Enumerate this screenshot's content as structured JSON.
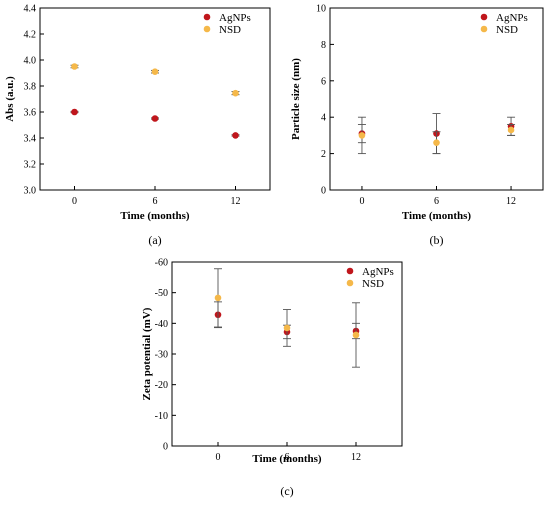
{
  "colors": {
    "agnps": "#c0161c",
    "nsd": "#f5b849",
    "axis": "#000000",
    "errorbar": "#555555"
  },
  "chart_data": [
    {
      "type": "scatter",
      "panel_label": "(a)",
      "xlabel": "Time (months)",
      "ylabel": "Abs (a.u.)",
      "categories": [
        "0",
        "6",
        "12"
      ],
      "ylim": [
        3.0,
        4.4
      ],
      "yticks": [
        "3.0",
        "3.2",
        "3.4",
        "3.6",
        "3.8",
        "4.0",
        "4.2",
        "4.4"
      ],
      "grid": false,
      "legend_position": "top-right",
      "series": [
        {
          "name": "AgNPs",
          "values": [
            3.6,
            3.55,
            3.42
          ],
          "errors": [
            0.005,
            0.005,
            0.005
          ]
        },
        {
          "name": "NSD",
          "values": [
            3.95,
            3.91,
            3.745
          ],
          "errors": [
            0.01,
            0.01,
            0.012
          ]
        }
      ]
    },
    {
      "type": "scatter",
      "panel_label": "(b)",
      "xlabel": "Time (months)",
      "ylabel": "Particle size (nm)",
      "categories": [
        "0",
        "6",
        "12"
      ],
      "ylim": [
        0,
        10
      ],
      "yticks": [
        "0",
        "2",
        "4",
        "6",
        "8",
        "10"
      ],
      "grid": false,
      "legend_position": "top-right",
      "series": [
        {
          "name": "AgNPs",
          "values": [
            3.1,
            3.1,
            3.5
          ],
          "errors": [
            0.5,
            1.1,
            0.5
          ]
        },
        {
          "name": "NSD",
          "values": [
            3.0,
            2.6,
            3.3
          ],
          "errors": [
            1.0,
            0.6,
            0.3
          ]
        }
      ]
    },
    {
      "type": "scatter",
      "panel_label": "(c)",
      "xlabel": "Time (months)",
      "ylabel": "Zeta potential (mV)",
      "categories": [
        "0",
        "6",
        "12"
      ],
      "ylim": [
        0,
        -60
      ],
      "yticks": [
        "0",
        "-10",
        "-20",
        "-30",
        "-40",
        "-50",
        "-60"
      ],
      "grid": false,
      "legend_position": "top-right",
      "series": [
        {
          "name": "AgNPs",
          "values": [
            -42.8,
            -37.2,
            -37.5
          ],
          "errors": [
            4.2,
            2.2,
            2.5
          ]
        },
        {
          "name": "NSD",
          "values": [
            -48.3,
            -38.5,
            -36.2
          ],
          "errors": [
            9.5,
            6.0,
            10.5
          ]
        }
      ]
    }
  ]
}
